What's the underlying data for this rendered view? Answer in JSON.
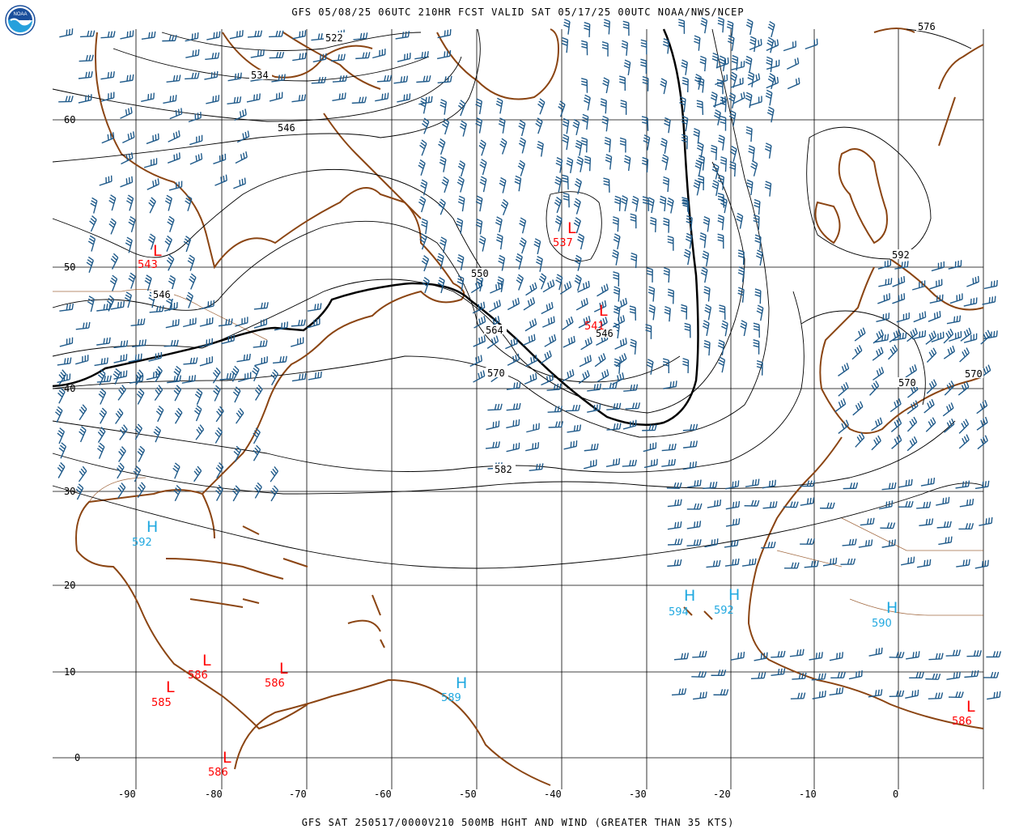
{
  "header": {
    "title": "GFS 05/08/25 06UTC 210HR FCST VALID SAT 05/17/25 00UTC NOAA/NWS/NCEP",
    "footer": "GFS SAT 250517/0000V210 500MB HGHT AND WIND (GREATER THAN 35 KTS)",
    "logo_text": "NOAA"
  },
  "axes": {
    "lon_labels": [
      "-90",
      "-80",
      "-70",
      "-60",
      "-50",
      "-40",
      "-30",
      "-20",
      "-10",
      "0"
    ],
    "lat_labels": [
      "60",
      "50",
      "40",
      "30",
      "20",
      "10",
      "0"
    ]
  },
  "contour_labels": [
    "522",
    "534",
    "546",
    "546",
    "550",
    "564",
    "570",
    "582",
    "546",
    "592",
    "570",
    "570",
    "576"
  ],
  "centers": [
    {
      "type": "L",
      "value": "543",
      "color": "#ff0000"
    },
    {
      "type": "L",
      "value": "537",
      "color": "#ff0000"
    },
    {
      "type": "L",
      "value": "541",
      "color": "#ff0000"
    },
    {
      "type": "H",
      "value": "592",
      "color": "#1fa8e0"
    },
    {
      "type": "H",
      "value": "594",
      "color": "#1fa8e0"
    },
    {
      "type": "H",
      "value": "592",
      "color": "#1fa8e0"
    },
    {
      "type": "H",
      "value": "590",
      "color": "#1fa8e0"
    },
    {
      "type": "H",
      "value": "589",
      "color": "#1fa8e0"
    },
    {
      "type": "L",
      "value": "586",
      "color": "#ff0000"
    },
    {
      "type": "L",
      "value": "585",
      "color": "#ff0000"
    },
    {
      "type": "L",
      "value": "586",
      "color": "#ff0000"
    },
    {
      "type": "L",
      "value": "586",
      "color": "#ff0000"
    },
    {
      "type": "L",
      "value": "586",
      "color": "#ff0000"
    }
  ],
  "colors": {
    "coastline": "#8b4513",
    "wind_barbs": "#1f5a8a",
    "low_center": "#ff0000",
    "high_center": "#1fa8e0",
    "contour": "#000000",
    "grid": "#000000"
  }
}
